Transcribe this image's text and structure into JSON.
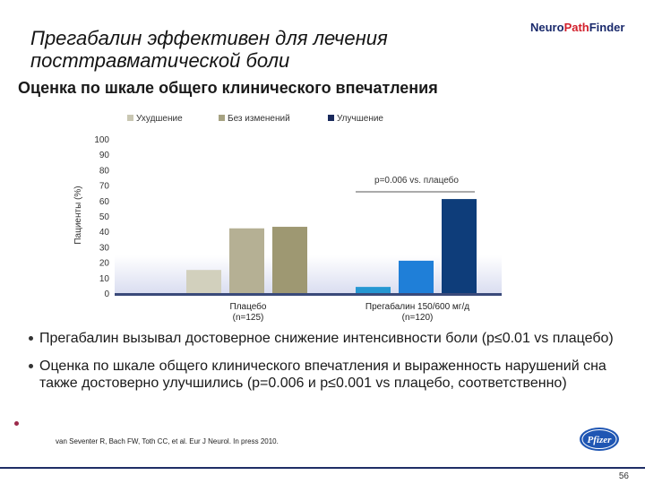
{
  "slide": {
    "title": "Прегабалин эффективен для лечения посттравматической боли",
    "subtitle": "Оценка по шкале общего клинического впечатления",
    "logo_text_part1": "Neuro",
    "logo_text_part2": "Path",
    "logo_text_part3": "Finder",
    "bullets": [
      "Прегабалин вызывал достоверное снижение интенсивности боли (p≤0.01 vs плацебо)",
      "Оценка по шкале общего клинического впечатления и выраженность нарушений сна также достоверно улучшились (p=0.006 и p≤0.001 vs плацебо, соответственно)"
    ],
    "reference": "van Seventer R, Bach FW, Toth CC, et al. Eur J Neurol. In press 2010.",
    "pfizer_label": "Pfizer",
    "page_number": "56"
  },
  "colors": {
    "worse_placebo": "#d2d0bd",
    "nochange_placebo": "#b5b094",
    "improve_placebo": "#9e9872",
    "worse_pregabalin": "#2597d2",
    "nochange_pregabalin": "#1f7fd8",
    "improve_pregabalin": "#0e3d7a",
    "legend_worse": "#c9c7b3",
    "legend_nochange": "#a6a282",
    "legend_improve": "#1a2a5c"
  },
  "chart_data": {
    "type": "bar",
    "ylabel": "Пациенты (%)",
    "ylim": [
      0,
      100
    ],
    "yticks": [
      "0",
      "10",
      "20",
      "30",
      "40",
      "50",
      "60",
      "70",
      "80",
      "90",
      "100"
    ],
    "categories": [
      {
        "label": "Плацебо",
        "n": "(n=125)"
      },
      {
        "label": "Прегабалин 150/600 мг/д",
        "n": "(n=120)"
      }
    ],
    "series": [
      {
        "name": "Ухудшение",
        "values": [
          15,
          4
        ]
      },
      {
        "name": "Без изменений",
        "values": [
          42,
          21
        ]
      },
      {
        "name": "Улучшение",
        "values": [
          43,
          61
        ]
      }
    ],
    "annotation": "p=0.006 vs. плацебо"
  }
}
